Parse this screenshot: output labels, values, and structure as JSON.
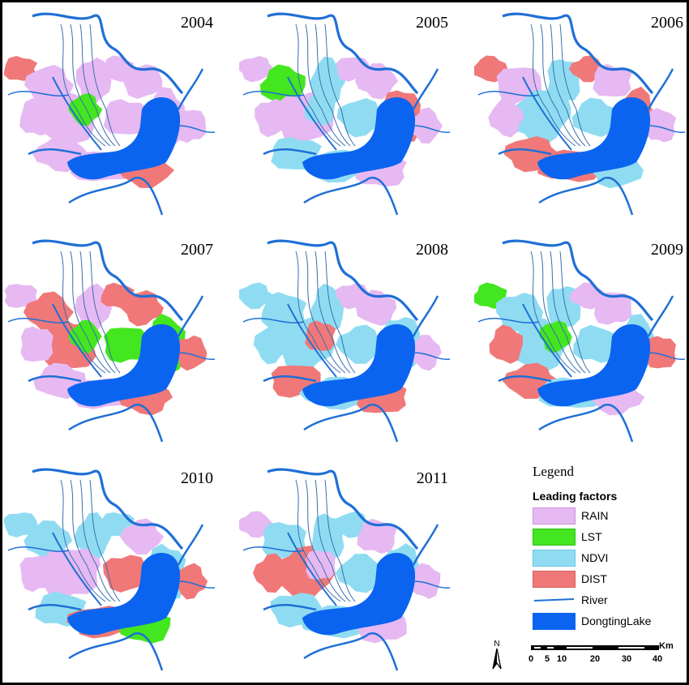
{
  "panels": [
    {
      "year": "2004"
    },
    {
      "year": "2005"
    },
    {
      "year": "2006"
    },
    {
      "year": "2007"
    },
    {
      "year": "2008"
    },
    {
      "year": "2009"
    },
    {
      "year": "2010"
    },
    {
      "year": "2011"
    }
  ],
  "legend": {
    "title": "Legend",
    "subtitle": "Leading factors",
    "items": [
      {
        "label": "RAIN",
        "color": "#e6b9f2"
      },
      {
        "label": "LST",
        "color": "#44e61f"
      },
      {
        "label": "NDVI",
        "color": "#8fdcf2"
      },
      {
        "label": "DIST",
        "color": "#f07878"
      },
      {
        "label": "River",
        "color": "#1f6fd6"
      },
      {
        "label": "DongtingLake",
        "color": "#0a64f0"
      }
    ]
  },
  "scale_bar": {
    "north_label": "N",
    "unit": "Km",
    "ticks": [
      "0",
      "5",
      "10",
      "20",
      "30",
      "40"
    ]
  }
}
